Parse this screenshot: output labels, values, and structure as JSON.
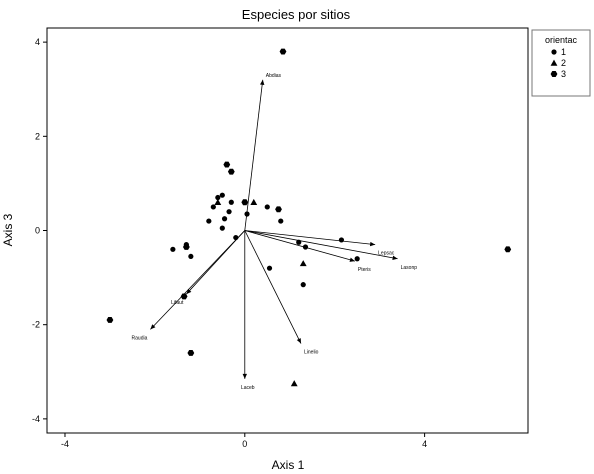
{
  "chart_data": {
    "type": "scatter",
    "title": "Especies por sitios",
    "xlabel": "Axis 1",
    "ylabel": "Axis 3",
    "xlim": [
      -4.4,
      6.3
    ],
    "ylim": [
      -4.3,
      4.3
    ],
    "x_ticks": [
      "-4",
      "0",
      "4"
    ],
    "y_ticks": [
      "-4",
      "-2",
      "0",
      "2",
      "4"
    ],
    "legend": {
      "title": "orientac",
      "position": "outside-right",
      "entries": [
        {
          "label": "1",
          "marker": "circle"
        },
        {
          "label": "2",
          "marker": "triangle"
        },
        {
          "label": "3",
          "marker": "hexagon"
        }
      ]
    },
    "series": [
      {
        "name": "1",
        "marker": "circle",
        "points": [
          [
            -1.6,
            -0.4
          ],
          [
            -1.3,
            -0.3
          ],
          [
            -1.2,
            -0.55
          ],
          [
            -0.7,
            0.5
          ],
          [
            -0.6,
            0.7
          ],
          [
            -0.5,
            0.75
          ],
          [
            -0.45,
            0.25
          ],
          [
            -0.3,
            0.6
          ],
          [
            0.05,
            0.35
          ],
          [
            0.8,
            0.2
          ],
          [
            1.2,
            -0.25
          ],
          [
            1.35,
            -0.35
          ],
          [
            1.3,
            -1.15
          ],
          [
            0.55,
            -0.8
          ],
          [
            2.15,
            -0.2
          ],
          [
            2.5,
            -0.6
          ],
          [
            -0.8,
            0.2
          ],
          [
            -0.35,
            0.4
          ],
          [
            0.5,
            0.5
          ],
          [
            -0.5,
            0.05
          ],
          [
            -0.2,
            -0.15
          ]
        ]
      },
      {
        "name": "2",
        "marker": "triangle",
        "points": [
          [
            -0.6,
            0.6
          ],
          [
            0.2,
            0.6
          ],
          [
            1.3,
            -0.7
          ],
          [
            1.1,
            -3.25
          ]
        ]
      },
      {
        "name": "3",
        "marker": "hexagon",
        "points": [
          [
            0.85,
            3.8
          ],
          [
            -0.4,
            1.4
          ],
          [
            -0.3,
            1.25
          ],
          [
            -1.3,
            -0.35
          ],
          [
            0.0,
            0.6
          ],
          [
            0.75,
            0.45
          ],
          [
            -3.0,
            -1.9
          ],
          [
            -1.2,
            -2.6
          ],
          [
            -1.35,
            -1.4
          ],
          [
            5.85,
            -0.4
          ]
        ]
      }
    ],
    "vectors": [
      {
        "label": "Abdias",
        "end": [
          0.4,
          3.2
        ]
      },
      {
        "label": "Lepsac",
        "end": [
          2.9,
          -0.3
        ]
      },
      {
        "label": "Lasonp",
        "end": [
          3.4,
          -0.6
        ]
      },
      {
        "label": "Pteris",
        "end": [
          2.45,
          -0.65
        ]
      },
      {
        "label": "Lifaut",
        "end": [
          -1.3,
          -1.35
        ]
      },
      {
        "label": "Raudia",
        "end": [
          -2.1,
          -2.1
        ]
      },
      {
        "label": "Laceb",
        "end": [
          0.0,
          -3.15
        ]
      },
      {
        "label": "Linelio",
        "end": [
          1.25,
          -2.4
        ]
      }
    ]
  }
}
